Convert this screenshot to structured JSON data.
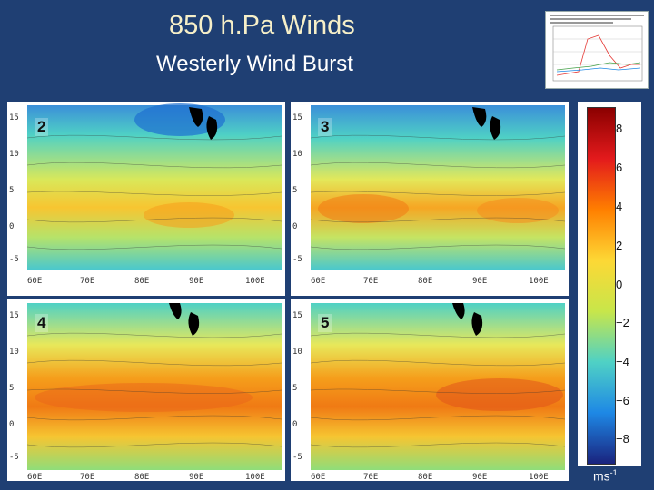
{
  "header": {
    "title": "850 h.Pa Winds",
    "subtitle": "Westerly Wind Burst"
  },
  "colorbar": {
    "ticks": [
      "8",
      "6",
      "4",
      "2",
      "0",
      "−2",
      "−4",
      "−6",
      "−8"
    ],
    "units_base": "ms",
    "units_exp": "-1",
    "colors": [
      "#8b0000",
      "#e31a1c",
      "#ff7f00",
      "#fdd835",
      "#c8e64a",
      "#4fd1c5",
      "#1e88e5",
      "#1a237e"
    ]
  },
  "panels": [
    {
      "label": "2"
    },
    {
      "label": "3"
    },
    {
      "label": "4"
    },
    {
      "label": "5"
    }
  ],
  "chart_data": {
    "type": "heatmap",
    "title": "850 h.Pa Winds",
    "subtitle": "Westerly Wind Burst",
    "panels": [
      "2",
      "3",
      "4",
      "5"
    ],
    "colorbar_range": [
      -8,
      8
    ],
    "colorbar_ticks": [
      8,
      6,
      4,
      2,
      0,
      -2,
      -4,
      -6,
      -8
    ],
    "units": "ms-1"
  }
}
